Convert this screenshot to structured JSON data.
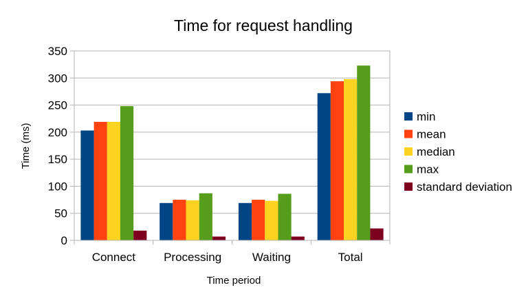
{
  "chart_data": {
    "type": "bar",
    "title": "Time for request handling",
    "xlabel": "Time period",
    "ylabel": "Time (ms)",
    "ylim": [
      0,
      350
    ],
    "yticks": [
      0,
      50,
      100,
      150,
      200,
      250,
      300,
      350
    ],
    "grid": true,
    "legend_position": "right",
    "categories": [
      "Connect",
      "Processing",
      "Waiting",
      "Total"
    ],
    "series": [
      {
        "name": "min",
        "color": "#004586",
        "values": [
          203,
          69,
          69,
          272
        ]
      },
      {
        "name": "mean",
        "color": "#ff420e",
        "values": [
          219,
          75,
          75,
          294
        ]
      },
      {
        "name": "median",
        "color": "#ffd320",
        "values": [
          219,
          74,
          73,
          298
        ]
      },
      {
        "name": "max",
        "color": "#579d1c",
        "values": [
          248,
          87,
          86,
          323
        ]
      },
      {
        "name": "standard deviation",
        "color": "#7e0021",
        "values": [
          18,
          7,
          7,
          22
        ]
      }
    ]
  }
}
